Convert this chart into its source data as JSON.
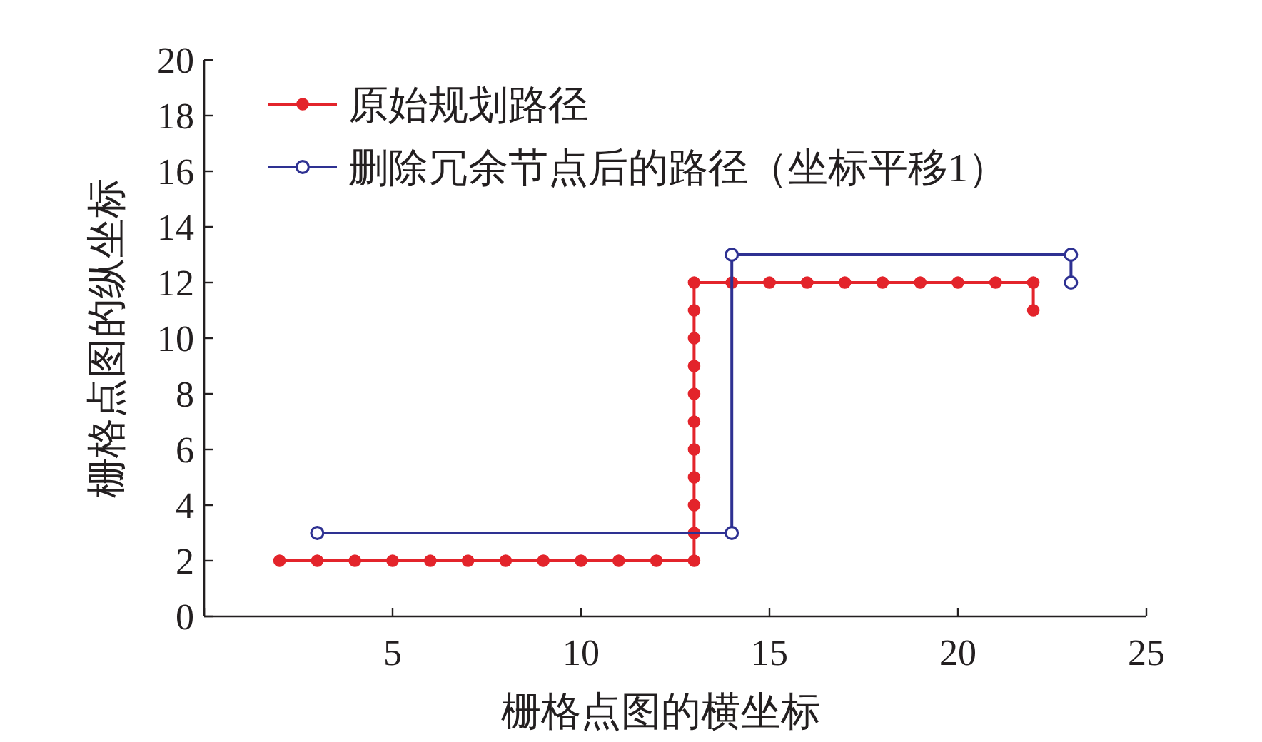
{
  "chart_data": {
    "type": "line",
    "xlabel": "栅格点图的横坐标",
    "ylabel": "栅格点图的纵坐标",
    "xlim": [
      0,
      25
    ],
    "xticks": [
      {
        "value": 0,
        "label": null
      },
      5,
      10,
      15,
      20,
      25
    ],
    "ylim": [
      0,
      20
    ],
    "yticks": [
      0,
      2,
      4,
      6,
      8,
      10,
      12,
      14,
      16,
      18,
      20
    ],
    "grid": false,
    "legend": "top left",
    "marker": "circle",
    "line_style": "solid",
    "series": [
      {
        "name": "原始规划路径",
        "color": "#e3242b",
        "x": [
          2,
          3,
          4,
          5,
          6,
          7,
          8,
          9,
          10,
          11,
          12,
          13,
          13,
          13,
          13,
          13,
          13,
          13,
          13,
          13,
          13,
          13,
          14,
          15,
          16,
          17,
          18,
          19,
          20,
          21,
          22,
          22
        ],
        "values": [
          2,
          2,
          2,
          2,
          2,
          2,
          2,
          2,
          2,
          2,
          2,
          2,
          3,
          4,
          5,
          6,
          7,
          8,
          9,
          10,
          11,
          12,
          12,
          12,
          12,
          12,
          12,
          12,
          12,
          12,
          12,
          11
        ]
      },
      {
        "name": "删除冗余节点后的路径（坐标平移1）",
        "color": "#2e3192",
        "x": [
          3,
          14,
          14,
          23,
          23
        ],
        "values": [
          3,
          3,
          13,
          13,
          12
        ]
      }
    ]
  }
}
